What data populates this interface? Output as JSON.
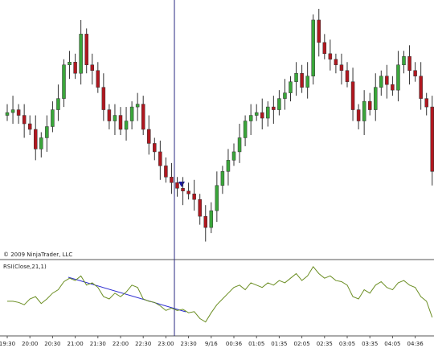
{
  "chart_data": {
    "type": "candlestick",
    "copyright": "© 2009 NinjaTrader, LLC",
    "categories": [
      "19:30",
      null,
      null,
      null,
      "20:00",
      null,
      null,
      null,
      "20:30",
      null,
      null,
      null,
      "21:00",
      null,
      null,
      null,
      "21:30",
      null,
      null,
      null,
      "22:00",
      null,
      null,
      null,
      "22:30",
      null,
      null,
      null,
      "23:00",
      null,
      null,
      null,
      "23:30",
      null,
      null,
      null,
      "9/16",
      null,
      null,
      null,
      "00:36",
      null,
      null,
      null,
      "01:05",
      null,
      null,
      null,
      "01:35",
      null,
      null,
      null,
      "02:05",
      null,
      null,
      null,
      "02:35",
      null,
      null,
      null,
      "03:05",
      null,
      null,
      null,
      "03:35",
      null,
      null,
      null,
      "04:05",
      null,
      null,
      null,
      "04:36",
      null,
      null,
      null
    ],
    "open": [
      60,
      61,
      62,
      60,
      57,
      55,
      48,
      52,
      56,
      62,
      66,
      78,
      79,
      75,
      89,
      78,
      76,
      70,
      62,
      58,
      60,
      55,
      58,
      63,
      64,
      55,
      50,
      47,
      42,
      38,
      36,
      34,
      33,
      32,
      30,
      24,
      20,
      26,
      35,
      40,
      44,
      47,
      52,
      58,
      60,
      61,
      59,
      63,
      62,
      66,
      68,
      72,
      75,
      70,
      74,
      94,
      86,
      82,
      80,
      78,
      76,
      72,
      62,
      58,
      65,
      62,
      70,
      74,
      71,
      69,
      78,
      81,
      76,
      74,
      66,
      63
    ],
    "high": [
      64,
      67,
      64,
      64,
      60,
      60,
      54,
      60,
      65,
      71,
      80,
      83,
      82,
      94,
      91,
      82,
      79,
      75,
      64,
      64,
      63,
      63,
      65,
      68,
      67,
      60,
      52,
      51,
      45,
      43,
      38,
      38,
      36,
      37,
      32,
      28,
      29,
      40,
      42,
      48,
      50,
      57,
      60,
      64,
      64,
      66,
      65,
      67,
      69,
      73,
      74,
      79,
      78,
      79,
      96,
      98,
      89,
      87,
      82,
      82,
      79,
      77,
      64,
      69,
      68,
      75,
      76,
      78,
      74,
      83,
      83,
      85,
      79,
      79,
      68,
      67
    ],
    "low": [
      58,
      57,
      57,
      52,
      53,
      44,
      45,
      47,
      54,
      58,
      63,
      73,
      73,
      71,
      75,
      71,
      68,
      58,
      55,
      53,
      53,
      51,
      55,
      58,
      53,
      46,
      44,
      37,
      36,
      32,
      31,
      28,
      30,
      26,
      21,
      15,
      18,
      22,
      32,
      35,
      42,
      43,
      49,
      53,
      58,
      55,
      56,
      57,
      60,
      62,
      65,
      67,
      68,
      66,
      71,
      81,
      80,
      76,
      75,
      71,
      70,
      58,
      55,
      53,
      60,
      58,
      67,
      66,
      67,
      65,
      75,
      71,
      72,
      62,
      60,
      35
    ],
    "close": [
      61,
      62,
      60,
      57,
      55,
      48,
      52,
      56,
      62,
      66,
      78,
      79,
      75,
      89,
      78,
      76,
      70,
      62,
      58,
      60,
      55,
      58,
      63,
      64,
      55,
      50,
      47,
      42,
      38,
      36,
      34,
      33,
      32,
      30,
      24,
      20,
      26,
      35,
      40,
      44,
      47,
      52,
      58,
      60,
      61,
      59,
      63,
      62,
      66,
      68,
      72,
      75,
      70,
      74,
      94,
      86,
      82,
      80,
      78,
      76,
      72,
      62,
      58,
      65,
      62,
      70,
      74,
      71,
      69,
      78,
      81,
      76,
      74,
      66,
      63,
      40
    ],
    "up_color": "#3aa63a",
    "down_color": "#b0171f",
    "ylim": [
      10,
      100
    ],
    "indicator": {
      "title": "RSI(Close,21,1)",
      "color": "#6b8e23",
      "ylim": [
        20,
        80
      ],
      "values": [
        48,
        48,
        47,
        45,
        50,
        52,
        46,
        50,
        55,
        58,
        65,
        68,
        66,
        70,
        62,
        64,
        60,
        52,
        50,
        55,
        52,
        56,
        62,
        60,
        50,
        48,
        47,
        44,
        40,
        42,
        40,
        41,
        38,
        39,
        33,
        30,
        38,
        45,
        50,
        55,
        60,
        62,
        58,
        64,
        62,
        60,
        64,
        62,
        66,
        64,
        68,
        72,
        66,
        70,
        78,
        72,
        68,
        70,
        66,
        65,
        62,
        52,
        50,
        58,
        55,
        62,
        65,
        60,
        58,
        64,
        66,
        62,
        60,
        52,
        48,
        34
      ]
    }
  }
}
